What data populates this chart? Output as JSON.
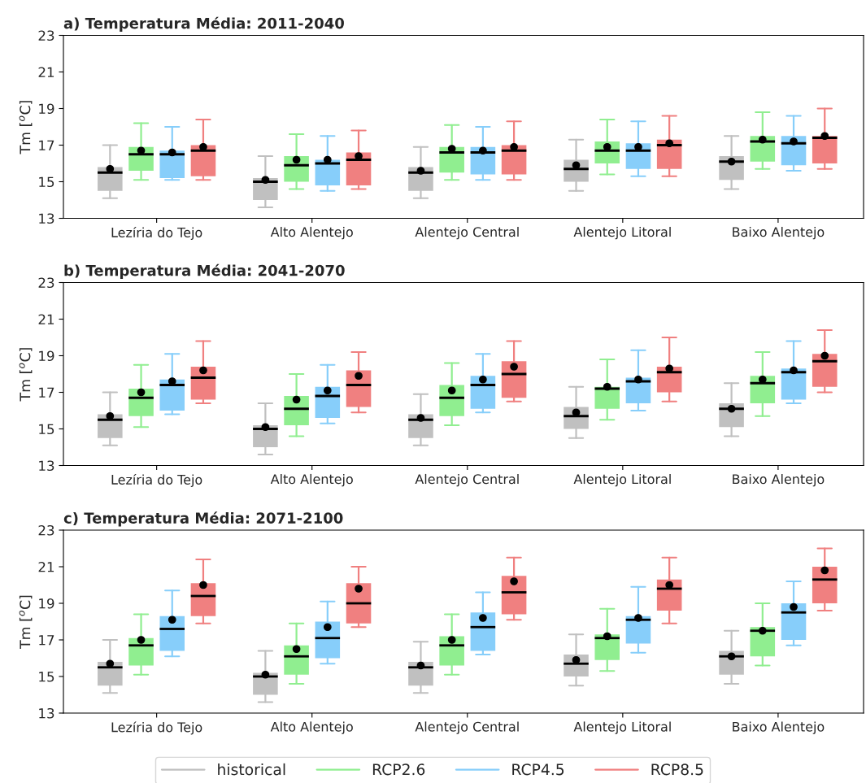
{
  "chart_data": [
    {
      "type": "box",
      "title": "a) Temperatura Média: 2011-2040",
      "ylabel": "Tm [$^{o}$C]",
      "categories": [
        "Lezíria do Tejo",
        "Alto Alentejo",
        "Alentejo Central",
        "Alentejo Litoral",
        "Baixo Alentejo"
      ],
      "ylim": [
        13,
        23
      ],
      "yticks": [
        13,
        15,
        17,
        19,
        21,
        23
      ],
      "series": [
        {
          "color": "#c0c0c0",
          "boxes": [
            {
              "low": 14.1,
              "q1": 14.5,
              "median": 15.5,
              "q3": 15.8,
              "high": 17.0,
              "mean": 15.7
            },
            {
              "low": 13.6,
              "q1": 14.0,
              "median": 15.0,
              "q3": 15.2,
              "high": 16.4,
              "mean": 15.1
            },
            {
              "low": 14.1,
              "q1": 14.5,
              "median": 15.5,
              "q3": 15.8,
              "high": 16.9,
              "mean": 15.6
            },
            {
              "low": 14.5,
              "q1": 15.0,
              "median": 15.7,
              "q3": 16.2,
              "high": 17.3,
              "mean": 15.9
            },
            {
              "low": 14.6,
              "q1": 15.1,
              "median": 16.1,
              "q3": 16.4,
              "high": 17.5,
              "mean": 16.1
            }
          ]
        },
        {
          "color": "#90ee90",
          "boxes": [
            {
              "low": 15.1,
              "q1": 15.6,
              "median": 16.5,
              "q3": 16.9,
              "high": 18.2,
              "mean": 16.7
            },
            {
              "low": 14.6,
              "q1": 15.0,
              "median": 15.9,
              "q3": 16.4,
              "high": 17.6,
              "mean": 16.2
            },
            {
              "low": 15.1,
              "q1": 15.5,
              "median": 16.6,
              "q3": 16.9,
              "high": 18.1,
              "mean": 16.8
            },
            {
              "low": 15.4,
              "q1": 16.0,
              "median": 16.7,
              "q3": 17.2,
              "high": 18.4,
              "mean": 16.9
            },
            {
              "low": 15.7,
              "q1": 16.1,
              "median": 17.2,
              "q3": 17.5,
              "high": 18.8,
              "mean": 17.3
            }
          ]
        },
        {
          "color": "#87cefa",
          "boxes": [
            {
              "low": 15.1,
              "q1": 15.2,
              "median": 16.5,
              "q3": 16.7,
              "high": 18.0,
              "mean": 16.6
            },
            {
              "low": 14.5,
              "q1": 14.8,
              "median": 16.0,
              "q3": 16.2,
              "high": 17.5,
              "mean": 16.2
            },
            {
              "low": 15.1,
              "q1": 15.4,
              "median": 16.6,
              "q3": 16.9,
              "high": 18.0,
              "mean": 16.7
            },
            {
              "low": 15.3,
              "q1": 15.7,
              "median": 16.7,
              "q3": 17.1,
              "high": 18.3,
              "mean": 16.9
            },
            {
              "low": 15.6,
              "q1": 15.9,
              "median": 17.1,
              "q3": 17.5,
              "high": 18.6,
              "mean": 17.2
            }
          ]
        },
        {
          "color": "#f08080",
          "boxes": [
            {
              "low": 15.1,
              "q1": 15.3,
              "median": 16.7,
              "q3": 17.0,
              "high": 18.4,
              "mean": 16.9
            },
            {
              "low": 14.6,
              "q1": 14.8,
              "median": 16.2,
              "q3": 16.6,
              "high": 17.8,
              "mean": 16.4
            },
            {
              "low": 15.1,
              "q1": 15.4,
              "median": 16.7,
              "q3": 17.0,
              "high": 18.3,
              "mean": 16.9
            },
            {
              "low": 15.3,
              "q1": 15.7,
              "median": 17.0,
              "q3": 17.3,
              "high": 18.6,
              "mean": 17.1
            },
            {
              "low": 15.7,
              "q1": 16.0,
              "median": 17.4,
              "q3": 17.5,
              "high": 19.0,
              "mean": 17.5
            }
          ]
        }
      ]
    },
    {
      "type": "box",
      "title": "b) Temperatura Média: 2041-2070",
      "ylabel": "Tm [$^{o}$C]",
      "categories": [
        "Lezíria do Tejo",
        "Alto Alentejo",
        "Alentejo Central",
        "Alentejo Litoral",
        "Baixo Alentejo"
      ],
      "ylim": [
        13,
        23
      ],
      "yticks": [
        13,
        15,
        17,
        19,
        21,
        23
      ],
      "series": [
        {
          "color": "#c0c0c0",
          "boxes": [
            {
              "low": 14.1,
              "q1": 14.5,
              "median": 15.5,
              "q3": 15.8,
              "high": 17.0,
              "mean": 15.7
            },
            {
              "low": 13.6,
              "q1": 14.0,
              "median": 15.0,
              "q3": 15.2,
              "high": 16.4,
              "mean": 15.1
            },
            {
              "low": 14.1,
              "q1": 14.5,
              "median": 15.5,
              "q3": 15.8,
              "high": 16.9,
              "mean": 15.6
            },
            {
              "low": 14.5,
              "q1": 15.0,
              "median": 15.7,
              "q3": 16.2,
              "high": 17.3,
              "mean": 15.9
            },
            {
              "low": 14.6,
              "q1": 15.1,
              "median": 16.1,
              "q3": 16.4,
              "high": 17.5,
              "mean": 16.1
            }
          ]
        },
        {
          "color": "#90ee90",
          "boxes": [
            {
              "low": 15.1,
              "q1": 15.7,
              "median": 16.7,
              "q3": 17.2,
              "high": 18.5,
              "mean": 17.0
            },
            {
              "low": 14.6,
              "q1": 15.2,
              "median": 16.1,
              "q3": 16.8,
              "high": 18.0,
              "mean": 16.6
            },
            {
              "low": 15.2,
              "q1": 15.7,
              "median": 16.7,
              "q3": 17.4,
              "high": 18.6,
              "mean": 17.1
            },
            {
              "low": 15.5,
              "q1": 16.1,
              "median": 17.2,
              "q3": 17.3,
              "high": 18.8,
              "mean": 17.3
            },
            {
              "low": 15.7,
              "q1": 16.4,
              "median": 17.5,
              "q3": 17.9,
              "high": 19.2,
              "mean": 17.7
            }
          ]
        },
        {
          "color": "#87cefa",
          "boxes": [
            {
              "low": 15.8,
              "q1": 16.0,
              "median": 17.4,
              "q3": 17.7,
              "high": 19.1,
              "mean": 17.6
            },
            {
              "low": 15.3,
              "q1": 15.6,
              "median": 16.8,
              "q3": 17.3,
              "high": 18.5,
              "mean": 17.1
            },
            {
              "low": 15.9,
              "q1": 16.1,
              "median": 17.4,
              "q3": 17.9,
              "high": 19.1,
              "mean": 17.7
            },
            {
              "low": 16.0,
              "q1": 16.4,
              "median": 17.6,
              "q3": 17.8,
              "high": 19.3,
              "mean": 17.7
            },
            {
              "low": 16.4,
              "q1": 16.6,
              "median": 18.1,
              "q3": 18.3,
              "high": 19.8,
              "mean": 18.2
            }
          ]
        },
        {
          "color": "#f08080",
          "boxes": [
            {
              "low": 16.4,
              "q1": 16.6,
              "median": 17.8,
              "q3": 18.4,
              "high": 19.8,
              "mean": 18.2
            },
            {
              "low": 15.9,
              "q1": 16.2,
              "median": 17.4,
              "q3": 18.2,
              "high": 19.2,
              "mean": 17.9
            },
            {
              "low": 16.5,
              "q1": 16.7,
              "median": 18.0,
              "q3": 18.7,
              "high": 19.8,
              "mean": 18.4
            },
            {
              "low": 16.5,
              "q1": 17.0,
              "median": 18.1,
              "q3": 18.4,
              "high": 20.0,
              "mean": 18.3
            },
            {
              "low": 17.0,
              "q1": 17.3,
              "median": 18.7,
              "q3": 19.1,
              "high": 20.4,
              "mean": 19.0
            }
          ]
        }
      ]
    },
    {
      "type": "box",
      "title": "c) Temperatura Média: 2071-2100",
      "ylabel": "Tm [$^{o}$C]",
      "categories": [
        "Lezíria do Tejo",
        "Alto Alentejo",
        "Alentejo Central",
        "Alentejo Litoral",
        "Baixo Alentejo"
      ],
      "ylim": [
        13,
        23
      ],
      "yticks": [
        13,
        15,
        17,
        19,
        21,
        23
      ],
      "legend": "bottom",
      "series": [
        {
          "name": "historical",
          "color": "#c0c0c0",
          "boxes": [
            {
              "low": 14.1,
              "q1": 14.5,
              "median": 15.5,
              "q3": 15.8,
              "high": 17.0,
              "mean": 15.7
            },
            {
              "low": 13.6,
              "q1": 14.0,
              "median": 15.0,
              "q3": 15.2,
              "high": 16.4,
              "mean": 15.1
            },
            {
              "low": 14.1,
              "q1": 14.5,
              "median": 15.5,
              "q3": 15.8,
              "high": 16.9,
              "mean": 15.6
            },
            {
              "low": 14.5,
              "q1": 15.0,
              "median": 15.7,
              "q3": 16.2,
              "high": 17.3,
              "mean": 15.9
            },
            {
              "low": 14.6,
              "q1": 15.1,
              "median": 16.1,
              "q3": 16.4,
              "high": 17.5,
              "mean": 16.1
            }
          ]
        },
        {
          "name": "RCP2.6",
          "color": "#90ee90",
          "boxes": [
            {
              "low": 15.1,
              "q1": 15.6,
              "median": 16.7,
              "q3": 17.1,
              "high": 18.4,
              "mean": 17.0
            },
            {
              "low": 14.6,
              "q1": 15.1,
              "median": 16.1,
              "q3": 16.7,
              "high": 17.9,
              "mean": 16.5
            },
            {
              "low": 15.1,
              "q1": 15.6,
              "median": 16.7,
              "q3": 17.2,
              "high": 18.4,
              "mean": 17.0
            },
            {
              "low": 15.3,
              "q1": 15.9,
              "median": 17.1,
              "q3": 17.3,
              "high": 18.7,
              "mean": 17.2
            },
            {
              "low": 15.6,
              "q1": 16.1,
              "median": 17.5,
              "q3": 17.7,
              "high": 19.0,
              "mean": 17.5
            }
          ]
        },
        {
          "name": "RCP4.5",
          "color": "#87cefa",
          "boxes": [
            {
              "low": 16.1,
              "q1": 16.4,
              "median": 17.6,
              "q3": 18.3,
              "high": 19.7,
              "mean": 18.1
            },
            {
              "low": 15.7,
              "q1": 16.0,
              "median": 17.1,
              "q3": 18.0,
              "high": 19.1,
              "mean": 17.7
            },
            {
              "low": 16.2,
              "q1": 16.4,
              "median": 17.7,
              "q3": 18.5,
              "high": 19.6,
              "mean": 18.2
            },
            {
              "low": 16.3,
              "q1": 16.8,
              "median": 18.1,
              "q3": 18.3,
              "high": 19.9,
              "mean": 18.2
            },
            {
              "low": 16.7,
              "q1": 17.0,
              "median": 18.5,
              "q3": 19.0,
              "high": 20.2,
              "mean": 18.8
            }
          ]
        },
        {
          "name": "RCP8.5",
          "color": "#f08080",
          "boxes": [
            {
              "low": 17.9,
              "q1": 18.3,
              "median": 19.4,
              "q3": 20.1,
              "high": 21.4,
              "mean": 20.0
            },
            {
              "low": 17.7,
              "q1": 17.9,
              "median": 19.0,
              "q3": 20.1,
              "high": 21.0,
              "mean": 19.8
            },
            {
              "low": 18.1,
              "q1": 18.4,
              "median": 19.6,
              "q3": 20.5,
              "high": 21.5,
              "mean": 20.2
            },
            {
              "low": 17.9,
              "q1": 18.6,
              "median": 19.8,
              "q3": 20.3,
              "high": 21.5,
              "mean": 20.0
            },
            {
              "low": 18.6,
              "q1": 19.0,
              "median": 20.3,
              "q3": 21.0,
              "high": 22.0,
              "mean": 20.8
            }
          ]
        }
      ]
    }
  ]
}
